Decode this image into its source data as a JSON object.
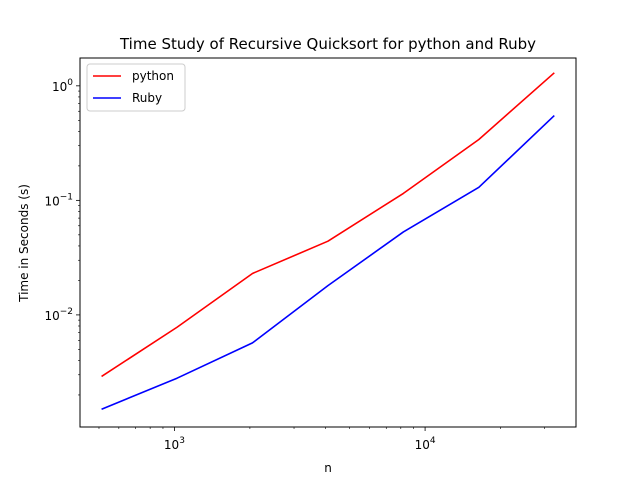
{
  "chart_data": {
    "type": "line",
    "title": "Time Study of Recursive Quicksort for python and Ruby",
    "xlabel": "n",
    "ylabel": "Time in Seconds (s)",
    "xscale": "log",
    "yscale": "log",
    "xlim": [
      420,
      40000
    ],
    "ylim": [
      0.00105,
      1.75
    ],
    "grid": false,
    "legend_position": "top-left",
    "x": [
      512,
      1024,
      2048,
      4096,
      8192,
      16384,
      32768
    ],
    "series": [
      {
        "name": "python",
        "color": "#ff0000",
        "values": [
          0.0029,
          0.0078,
          0.023,
          0.044,
          0.115,
          0.34,
          1.3
        ]
      },
      {
        "name": "Ruby",
        "color": "#0000ff",
        "values": [
          0.0015,
          0.0028,
          0.0057,
          0.018,
          0.053,
          0.13,
          0.55
        ]
      }
    ],
    "x_ticks": [
      {
        "value": 1000,
        "base": "10",
        "exp": "3"
      },
      {
        "value": 10000,
        "base": "10",
        "exp": "4"
      }
    ],
    "y_ticks": [
      {
        "value": 0.01,
        "base": "10",
        "exp": "−2"
      },
      {
        "value": 0.1,
        "base": "10",
        "exp": "−1"
      },
      {
        "value": 1,
        "base": "10",
        "exp": "0"
      }
    ]
  }
}
